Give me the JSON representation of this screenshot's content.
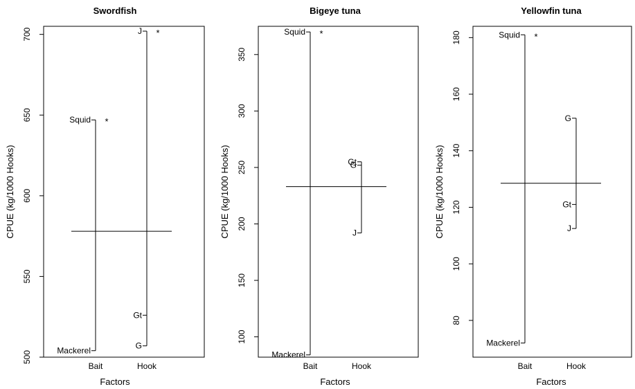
{
  "chart_data": [
    {
      "type": "design-plot",
      "title": "Swordfish",
      "xlabel": "Factors",
      "ylabel": "CPUE (kg/1000 Hooks)",
      "ylim": [
        500,
        705
      ],
      "yticks": [
        500,
        550,
        600,
        650,
        700
      ],
      "grand_mean": 578,
      "factors": [
        {
          "name": "Bait",
          "levels": [
            {
              "label": "Squid",
              "value": 647,
              "significant": true
            },
            {
              "label": "Mackerel",
              "value": 504
            }
          ]
        },
        {
          "name": "Hook",
          "levels": [
            {
              "label": "J",
              "value": 702,
              "significant": true
            },
            {
              "label": "Gt",
              "value": 526
            },
            {
              "label": "G",
              "value": 507
            }
          ]
        }
      ]
    },
    {
      "type": "design-plot",
      "title": "Bigeye tuna",
      "xlabel": "Factors",
      "ylabel": "CPUE (kg/1000 Hooks)",
      "ylim": [
        82,
        375
      ],
      "yticks": [
        100,
        150,
        200,
        250,
        300,
        350
      ],
      "grand_mean": 233,
      "factors": [
        {
          "name": "Bait",
          "levels": [
            {
              "label": "Squid",
              "value": 370,
              "significant": true
            },
            {
              "label": "Mackerel",
              "value": 84
            }
          ]
        },
        {
          "name": "Hook",
          "levels": [
            {
              "label": "Gt",
              "value": 255
            },
            {
              "label": "G",
              "value": 252
            },
            {
              "label": "J",
              "value": 192
            }
          ]
        }
      ]
    },
    {
      "type": "design-plot",
      "title": "Yellowfin tuna",
      "xlabel": "Factors",
      "ylabel": "CPUE (kg/1000 Hooks)",
      "ylim": [
        67,
        184
      ],
      "yticks": [
        80,
        100,
        120,
        140,
        160,
        180
      ],
      "grand_mean": 128.5,
      "factors": [
        {
          "name": "Bait",
          "levels": [
            {
              "label": "Squid",
              "value": 181,
              "significant": true
            },
            {
              "label": "Mackerel",
              "value": 72
            }
          ]
        },
        {
          "name": "Hook",
          "levels": [
            {
              "label": "G",
              "value": 151.5
            },
            {
              "label": "Gt",
              "value": 121
            },
            {
              "label": "J",
              "value": 112.5
            }
          ]
        }
      ]
    }
  ],
  "significance_marker": "*"
}
